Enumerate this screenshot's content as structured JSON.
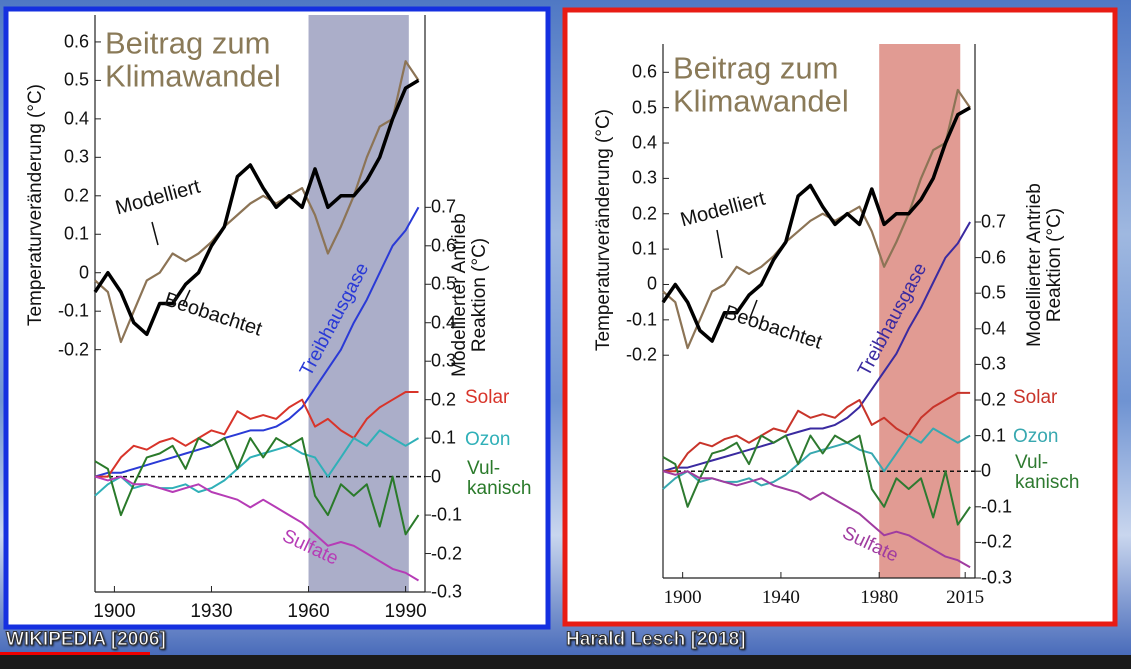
{
  "captions": [
    "WIKIPEDIA [2006]",
    "Harald Lesch [2018]"
  ],
  "chart_data": [
    {
      "type": "line",
      "title": "Beitrag zum Klimawandel",
      "y_label": "Temperaturveränderung (°C)",
      "y2_label": "Modellierter Antrieb Reaktion (°C)",
      "annotations": [
        "Modelliert",
        "Beobachtet"
      ],
      "x": [
        1894,
        1898,
        1902,
        1906,
        1910,
        1914,
        1918,
        1922,
        1926,
        1930,
        1934,
        1938,
        1942,
        1946,
        1950,
        1954,
        1958,
        1962,
        1966,
        1970,
        1974,
        1978,
        1982,
        1986,
        1990,
        1994
      ],
      "xlim": [
        1894,
        1996
      ],
      "xticks": [
        1900,
        1930,
        1960,
        1990
      ],
      "ylim": [
        -0.83,
        0.67
      ],
      "yticks": [
        -0.2,
        -0.1,
        0,
        0.1,
        0.2,
        0.3,
        0.4,
        0.5,
        0.6
      ],
      "y2lim": [
        -0.3,
        1.2
      ],
      "y2ticks": [
        -0.3,
        -0.2,
        -0.1,
        0,
        0.1,
        0.2,
        0.3,
        0.4,
        0.5,
        0.6,
        0.7
      ],
      "highlight": [
        1960,
        1991
      ],
      "highlight_color": "#9ca0bf",
      "border_color": "#1530e0",
      "series": [
        {
          "name": "Modelliert",
          "color": "#8c7456",
          "values": [
            -0.02,
            -0.05,
            -0.18,
            -0.1,
            -0.02,
            0.0,
            0.05,
            0.03,
            0.05,
            0.08,
            0.12,
            0.15,
            0.18,
            0.2,
            0.18,
            0.2,
            0.22,
            0.15,
            0.05,
            0.12,
            0.2,
            0.3,
            0.38,
            0.4,
            0.55,
            0.5
          ]
        },
        {
          "name": "Beobachtet",
          "color": "#000000",
          "values": [
            -0.05,
            0.0,
            -0.05,
            -0.13,
            -0.16,
            -0.08,
            -0.08,
            -0.03,
            0.0,
            0.07,
            0.12,
            0.25,
            0.28,
            0.22,
            0.17,
            0.2,
            0.17,
            0.27,
            0.17,
            0.2,
            0.2,
            0.24,
            0.3,
            0.4,
            0.48,
            0.5
          ]
        },
        {
          "name": "Treibhausgase",
          "color": "#2a3ad6",
          "axis": "y2",
          "values": [
            0.0,
            0.01,
            0.01,
            0.02,
            0.03,
            0.04,
            0.05,
            0.06,
            0.07,
            0.08,
            0.1,
            0.11,
            0.12,
            0.12,
            0.13,
            0.15,
            0.18,
            0.23,
            0.28,
            0.33,
            0.4,
            0.46,
            0.53,
            0.6,
            0.64,
            0.7
          ]
        },
        {
          "name": "Solar",
          "color": "#d8342a",
          "axis": "y2",
          "values": [
            0,
            0,
            0.05,
            0.08,
            0.07,
            0.09,
            0.1,
            0.08,
            0.1,
            0.12,
            0.11,
            0.17,
            0.15,
            0.16,
            0.15,
            0.18,
            0.2,
            0.13,
            0.15,
            0.12,
            0.1,
            0.15,
            0.18,
            0.2,
            0.22,
            0.22
          ]
        },
        {
          "name": "Ozon",
          "color": "#30b0b8",
          "axis": "y2",
          "values": [
            -0.05,
            -0.02,
            0.0,
            -0.03,
            -0.02,
            -0.03,
            -0.03,
            -0.02,
            -0.04,
            -0.03,
            -0.01,
            0.02,
            0.05,
            0.06,
            0.07,
            0.08,
            0.06,
            0.05,
            0.0,
            0.05,
            0.1,
            0.08,
            0.12,
            0.1,
            0.08,
            0.1
          ]
        },
        {
          "name": "Vul-kanisch",
          "color": "#2a7a2a",
          "axis": "y2",
          "values": [
            0.04,
            0.02,
            -0.1,
            -0.02,
            0.05,
            0.06,
            0.08,
            0.02,
            0.1,
            0.08,
            0.1,
            0.02,
            0.1,
            0.05,
            0.1,
            0.08,
            0.1,
            -0.05,
            -0.1,
            -0.02,
            -0.05,
            -0.02,
            -0.13,
            0.0,
            -0.15,
            -0.1
          ]
        },
        {
          "name": "Sulfate",
          "color": "#b63cb6",
          "axis": "y2",
          "values": [
            0.0,
            -0.01,
            0.0,
            -0.02,
            -0.02,
            -0.03,
            -0.04,
            -0.03,
            -0.02,
            -0.04,
            -0.05,
            -0.06,
            -0.08,
            -0.06,
            -0.08,
            -0.1,
            -0.12,
            -0.15,
            -0.18,
            -0.17,
            -0.18,
            -0.2,
            -0.22,
            -0.24,
            -0.25,
            -0.27
          ]
        }
      ]
    },
    {
      "type": "line",
      "title": "Beitrag zum Klimawandel",
      "y_label": "Temperaturveränderung (°C)",
      "y2_label": "Modellierter Antrieb Reaktion (°C)",
      "annotations": [
        "Modelliert",
        "Beobachtet"
      ],
      "x": [
        1892,
        1897,
        1902,
        1907,
        1912,
        1917,
        1922,
        1927,
        1932,
        1937,
        1942,
        1947,
        1952,
        1957,
        1962,
        1967,
        1972,
        1977,
        1982,
        1987,
        1992,
        1997,
        2002,
        2007,
        2012,
        2017
      ],
      "xlim": [
        1892,
        2019
      ],
      "xticks": [
        1900,
        1940,
        1980,
        2015
      ],
      "ylim": [
        -0.83,
        0.68
      ],
      "yticks": [
        -0.2,
        -0.1,
        0,
        0.1,
        0.2,
        0.3,
        0.4,
        0.5,
        0.6
      ],
      "y2lim": [
        -0.3,
        1.2
      ],
      "y2ticks": [
        -0.3,
        -0.2,
        -0.1,
        0,
        0.1,
        0.2,
        0.3,
        0.4,
        0.5,
        0.6,
        0.7
      ],
      "highlight": [
        1980,
        2013
      ],
      "highlight_color": "#dc8a80",
      "border_color": "#e81c14",
      "series": [
        {
          "name": "Modelliert",
          "color": "#8c7456",
          "values": [
            -0.02,
            -0.05,
            -0.18,
            -0.1,
            -0.02,
            0.0,
            0.05,
            0.03,
            0.05,
            0.08,
            0.12,
            0.15,
            0.18,
            0.2,
            0.18,
            0.2,
            0.22,
            0.15,
            0.05,
            0.12,
            0.2,
            0.3,
            0.38,
            0.4,
            0.55,
            0.5
          ]
        },
        {
          "name": "Beobachtet",
          "color": "#000000",
          "values": [
            -0.05,
            0.0,
            -0.05,
            -0.13,
            -0.16,
            -0.08,
            -0.08,
            -0.03,
            0.0,
            0.07,
            0.12,
            0.25,
            0.28,
            0.22,
            0.17,
            0.2,
            0.17,
            0.27,
            0.17,
            0.2,
            0.2,
            0.24,
            0.3,
            0.4,
            0.48,
            0.5
          ]
        },
        {
          "name": "Treibhausgase",
          "color": "#3a2aa0",
          "axis": "y2",
          "values": [
            0.0,
            0.01,
            0.01,
            0.02,
            0.03,
            0.04,
            0.05,
            0.06,
            0.07,
            0.08,
            0.1,
            0.11,
            0.12,
            0.12,
            0.13,
            0.15,
            0.18,
            0.23,
            0.28,
            0.33,
            0.4,
            0.46,
            0.53,
            0.6,
            0.64,
            0.7
          ]
        },
        {
          "name": "Solar",
          "color": "#c8342a",
          "axis": "y2",
          "values": [
            0,
            0,
            0.05,
            0.08,
            0.07,
            0.09,
            0.1,
            0.08,
            0.1,
            0.12,
            0.11,
            0.17,
            0.15,
            0.16,
            0.15,
            0.18,
            0.2,
            0.13,
            0.15,
            0.12,
            0.1,
            0.15,
            0.18,
            0.2,
            0.22,
            0.22
          ]
        },
        {
          "name": "Ozon",
          "color": "#38a8b0",
          "axis": "y2",
          "values": [
            -0.05,
            -0.02,
            0.0,
            -0.03,
            -0.02,
            -0.03,
            -0.03,
            -0.02,
            -0.04,
            -0.03,
            -0.01,
            0.02,
            0.05,
            0.06,
            0.07,
            0.08,
            0.06,
            0.05,
            0.0,
            0.05,
            0.1,
            0.08,
            0.12,
            0.1,
            0.08,
            0.1
          ]
        },
        {
          "name": "Vul-kanisch",
          "color": "#2e7a30",
          "axis": "y2",
          "values": [
            0.04,
            0.02,
            -0.1,
            -0.02,
            0.05,
            0.06,
            0.08,
            0.02,
            0.1,
            0.08,
            0.1,
            0.02,
            0.1,
            0.05,
            0.1,
            0.08,
            0.1,
            -0.05,
            -0.1,
            -0.02,
            -0.05,
            -0.02,
            -0.13,
            0.0,
            -0.15,
            -0.1
          ]
        },
        {
          "name": "Sulfate",
          "color": "#a03ca0",
          "axis": "y2",
          "values": [
            0.0,
            -0.01,
            0.0,
            -0.02,
            -0.02,
            -0.03,
            -0.04,
            -0.03,
            -0.02,
            -0.04,
            -0.05,
            -0.06,
            -0.08,
            -0.06,
            -0.08,
            -0.1,
            -0.12,
            -0.15,
            -0.18,
            -0.17,
            -0.18,
            -0.2,
            -0.22,
            -0.24,
            -0.25,
            -0.27
          ]
        }
      ]
    }
  ]
}
